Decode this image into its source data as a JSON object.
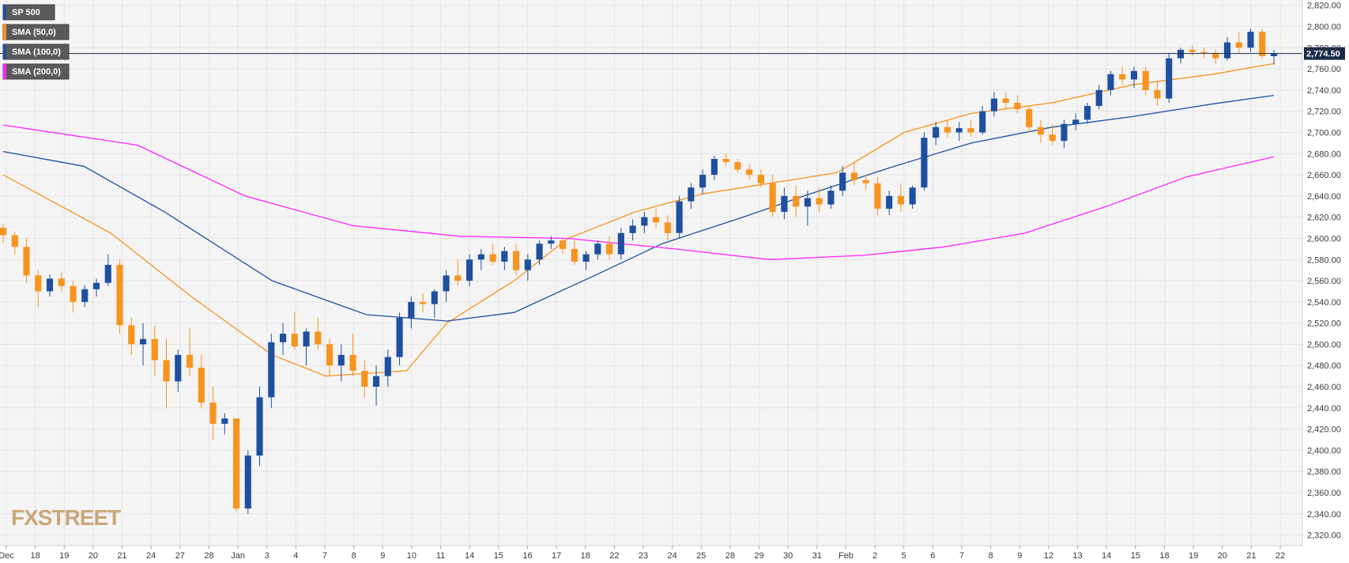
{
  "colors": {
    "background": "#f4f4f4",
    "grid": "#e3e3e3",
    "bull": "#1e4fa0",
    "bear": "#f7931e",
    "sma50": "#f7931e",
    "sma100": "#1e4fa0",
    "sma200": "#ff22ff",
    "current_price_line": "#1a2a4a",
    "price_tag": "#1a2a4a",
    "legend_bg": "#5a5a5a",
    "watermark": "#c9a77a"
  },
  "watermark": "FXSTREET",
  "current_price_label": "2,774.50",
  "legend": [
    {
      "label": "SP 500",
      "color": "#1e4fa0"
    },
    {
      "label": "SMA (50,0)",
      "color": "#f7931e"
    },
    {
      "label": "SMA (100,0)",
      "color": "#1e4fa0"
    },
    {
      "label": "SMA (200,0)",
      "color": "#ff22ff"
    }
  ],
  "chart_data": {
    "type": "candlestick",
    "title": "",
    "xlabel": "",
    "ylabel": "",
    "ylim": [
      2310,
      2825
    ],
    "grid": true,
    "y_ticks": [
      "2,820.00",
      "2,800.00",
      "2,780.00",
      "2,760.00",
      "2,740.00",
      "2,720.00",
      "2,700.00",
      "2,680.00",
      "2,660.00",
      "2,640.00",
      "2,620.00",
      "2,600.00",
      "2,580.00",
      "2,560.00",
      "2,540.00",
      "2,520.00",
      "2,500.00",
      "2,480.00",
      "2,460.00",
      "2,440.00",
      "2,420.00",
      "2,400.00",
      "2,380.00",
      "2,360.00",
      "2,340.00",
      "2,320.00"
    ],
    "y_tick_values": [
      2820,
      2800,
      2780,
      2760,
      2740,
      2720,
      2700,
      2680,
      2660,
      2640,
      2620,
      2600,
      2580,
      2560,
      2540,
      2520,
      2500,
      2480,
      2460,
      2440,
      2420,
      2400,
      2380,
      2360,
      2340,
      2320
    ],
    "x_ticks": [
      "Dec",
      "18",
      "19",
      "20",
      "21",
      "24",
      "27",
      "28",
      "Jan",
      "3",
      "4",
      "7",
      "8",
      "9",
      "10",
      "11",
      "14",
      "15",
      "16",
      "17",
      "18",
      "22",
      "23",
      "24",
      "25",
      "28",
      "29",
      "30",
      "31",
      "Feb",
      "2",
      "5",
      "6",
      "7",
      "8",
      "9",
      "12",
      "13",
      "14",
      "15",
      "18",
      "19",
      "20",
      "21",
      "22"
    ],
    "current_price": 2774.5,
    "series": [
      {
        "name": "SP 500",
        "kind": "candles",
        "ohlc": [
          [
            2610,
            2614,
            2596,
            2603
          ],
          [
            2603,
            2606,
            2585,
            2592
          ],
          [
            2592,
            2600,
            2558,
            2565
          ],
          [
            2565,
            2570,
            2535,
            2550
          ],
          [
            2550,
            2566,
            2545,
            2562
          ],
          [
            2562,
            2568,
            2550,
            2555
          ],
          [
            2555,
            2560,
            2530,
            2540
          ],
          [
            2540,
            2556,
            2535,
            2552
          ],
          [
            2552,
            2562,
            2545,
            2558
          ],
          [
            2558,
            2585,
            2555,
            2575
          ],
          [
            2575,
            2580,
            2510,
            2518
          ],
          [
            2518,
            2525,
            2490,
            2500
          ],
          [
            2500,
            2520,
            2480,
            2505
          ],
          [
            2505,
            2518,
            2470,
            2485
          ],
          [
            2485,
            2505,
            2440,
            2465
          ],
          [
            2465,
            2495,
            2455,
            2490
          ],
          [
            2490,
            2515,
            2470,
            2478
          ],
          [
            2478,
            2490,
            2440,
            2445
          ],
          [
            2445,
            2460,
            2410,
            2425
          ],
          [
            2425,
            2435,
            2415,
            2430
          ],
          [
            2430,
            2430,
            2342,
            2345
          ],
          [
            2345,
            2400,
            2340,
            2395
          ],
          [
            2395,
            2460,
            2385,
            2450
          ],
          [
            2450,
            2510,
            2440,
            2502
          ],
          [
            2502,
            2520,
            2490,
            2510
          ],
          [
            2510,
            2530,
            2495,
            2498
          ],
          [
            2498,
            2515,
            2480,
            2512
          ],
          [
            2512,
            2525,
            2495,
            2500
          ],
          [
            2500,
            2505,
            2470,
            2480
          ],
          [
            2480,
            2500,
            2465,
            2490
          ],
          [
            2490,
            2510,
            2470,
            2475
          ],
          [
            2475,
            2485,
            2450,
            2460
          ],
          [
            2460,
            2480,
            2442,
            2470
          ],
          [
            2470,
            2495,
            2460,
            2488
          ],
          [
            2488,
            2530,
            2480,
            2525
          ],
          [
            2525,
            2545,
            2515,
            2540
          ],
          [
            2540,
            2548,
            2530,
            2538
          ],
          [
            2538,
            2552,
            2525,
            2550
          ],
          [
            2550,
            2570,
            2540,
            2565
          ],
          [
            2565,
            2580,
            2555,
            2560
          ],
          [
            2560,
            2585,
            2555,
            2580
          ],
          [
            2580,
            2590,
            2570,
            2585
          ],
          [
            2585,
            2595,
            2575,
            2578
          ],
          [
            2578,
            2592,
            2570,
            2588
          ],
          [
            2588,
            2595,
            2565,
            2570
          ],
          [
            2570,
            2585,
            2560,
            2580
          ],
          [
            2580,
            2598,
            2575,
            2595
          ],
          [
            2595,
            2602,
            2590,
            2598
          ],
          [
            2598,
            2600,
            2585,
            2590
          ],
          [
            2590,
            2598,
            2575,
            2578
          ],
          [
            2578,
            2588,
            2570,
            2585
          ],
          [
            2585,
            2598,
            2580,
            2595
          ],
          [
            2595,
            2602,
            2580,
            2585
          ],
          [
            2585,
            2610,
            2580,
            2605
          ],
          [
            2605,
            2618,
            2598,
            2612
          ],
          [
            2612,
            2625,
            2605,
            2620
          ],
          [
            2620,
            2628,
            2610,
            2615
          ],
          [
            2615,
            2622,
            2598,
            2605
          ],
          [
            2605,
            2640,
            2600,
            2635
          ],
          [
            2635,
            2652,
            2628,
            2648
          ],
          [
            2648,
            2665,
            2642,
            2660
          ],
          [
            2660,
            2678,
            2655,
            2675
          ],
          [
            2675,
            2680,
            2668,
            2672
          ],
          [
            2672,
            2675,
            2662,
            2665
          ],
          [
            2665,
            2670,
            2655,
            2660
          ],
          [
            2660,
            2665,
            2648,
            2652
          ],
          [
            2652,
            2660,
            2620,
            2625
          ],
          [
            2625,
            2648,
            2618,
            2640
          ],
          [
            2640,
            2650,
            2620,
            2630
          ],
          [
            2630,
            2645,
            2612,
            2638
          ],
          [
            2638,
            2648,
            2625,
            2632
          ],
          [
            2632,
            2650,
            2628,
            2645
          ],
          [
            2645,
            2668,
            2640,
            2662
          ],
          [
            2662,
            2672,
            2650,
            2655
          ],
          [
            2655,
            2660,
            2645,
            2652
          ],
          [
            2652,
            2658,
            2622,
            2628
          ],
          [
            2628,
            2645,
            2622,
            2640
          ],
          [
            2640,
            2652,
            2625,
            2632
          ],
          [
            2632,
            2650,
            2628,
            2648
          ],
          [
            2648,
            2700,
            2645,
            2695
          ],
          [
            2695,
            2710,
            2688,
            2705
          ],
          [
            2705,
            2712,
            2695,
            2700
          ],
          [
            2700,
            2710,
            2692,
            2704
          ],
          [
            2704,
            2712,
            2696,
            2700
          ],
          [
            2700,
            2725,
            2698,
            2720
          ],
          [
            2720,
            2738,
            2715,
            2732
          ],
          [
            2732,
            2738,
            2722,
            2728
          ],
          [
            2728,
            2735,
            2718,
            2722
          ],
          [
            2722,
            2725,
            2700,
            2705
          ],
          [
            2705,
            2712,
            2690,
            2698
          ],
          [
            2698,
            2708,
            2688,
            2692
          ],
          [
            2692,
            2712,
            2685,
            2708
          ],
          [
            2708,
            2718,
            2702,
            2712
          ],
          [
            2712,
            2728,
            2708,
            2725
          ],
          [
            2725,
            2745,
            2722,
            2740
          ],
          [
            2740,
            2758,
            2735,
            2755
          ],
          [
            2755,
            2762,
            2745,
            2750
          ],
          [
            2750,
            2762,
            2742,
            2758
          ],
          [
            2758,
            2762,
            2735,
            2740
          ],
          [
            2740,
            2748,
            2725,
            2732
          ],
          [
            2732,
            2775,
            2728,
            2770
          ],
          [
            2770,
            2780,
            2765,
            2778
          ],
          [
            2778,
            2782,
            2772,
            2776
          ],
          [
            2776,
            2780,
            2770,
            2775
          ],
          [
            2775,
            2778,
            2765,
            2770
          ],
          [
            2770,
            2790,
            2768,
            2785
          ],
          [
            2785,
            2795,
            2775,
            2780
          ],
          [
            2780,
            2798,
            2776,
            2795
          ],
          [
            2795,
            2798,
            2770,
            2772
          ],
          [
            2772,
            2778,
            2764,
            2774.5
          ]
        ]
      },
      {
        "name": "SMA (50,0)",
        "kind": "line",
        "points": [
          [
            0,
            2660
          ],
          [
            0.08,
            2605
          ],
          [
            0.14,
            2545
          ],
          [
            0.2,
            2490
          ],
          [
            0.24,
            2470
          ],
          [
            0.3,
            2475
          ],
          [
            0.33,
            2520
          ],
          [
            0.38,
            2560
          ],
          [
            0.42,
            2600
          ],
          [
            0.47,
            2625
          ],
          [
            0.52,
            2642
          ],
          [
            0.57,
            2652
          ],
          [
            0.62,
            2662
          ],
          [
            0.67,
            2700
          ],
          [
            0.72,
            2718
          ],
          [
            0.78,
            2728
          ],
          [
            0.84,
            2745
          ],
          [
            0.9,
            2755
          ],
          [
            0.945,
            2765
          ]
        ]
      },
      {
        "name": "SMA (100,0)",
        "kind": "line",
        "points": [
          [
            0,
            2682
          ],
          [
            0.06,
            2668
          ],
          [
            0.12,
            2625
          ],
          [
            0.2,
            2560
          ],
          [
            0.27,
            2528
          ],
          [
            0.33,
            2522
          ],
          [
            0.38,
            2530
          ],
          [
            0.44,
            2565
          ],
          [
            0.49,
            2595
          ],
          [
            0.55,
            2620
          ],
          [
            0.6,
            2642
          ],
          [
            0.66,
            2667
          ],
          [
            0.72,
            2690
          ],
          [
            0.78,
            2705
          ],
          [
            0.84,
            2715
          ],
          [
            0.9,
            2727
          ],
          [
            0.945,
            2735
          ]
        ]
      },
      {
        "name": "SMA (200,0)",
        "kind": "line",
        "points": [
          [
            0,
            2707
          ],
          [
            0.1,
            2688
          ],
          [
            0.18,
            2640
          ],
          [
            0.26,
            2612
          ],
          [
            0.34,
            2602
          ],
          [
            0.42,
            2600
          ],
          [
            0.5,
            2590
          ],
          [
            0.57,
            2580
          ],
          [
            0.64,
            2584
          ],
          [
            0.7,
            2592
          ],
          [
            0.76,
            2605
          ],
          [
            0.82,
            2630
          ],
          [
            0.88,
            2658
          ],
          [
            0.945,
            2677
          ]
        ]
      }
    ]
  }
}
